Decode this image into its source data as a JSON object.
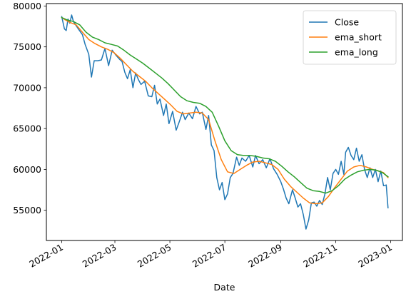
{
  "chart_data": {
    "type": "line",
    "title": "",
    "xlabel": "Date",
    "ylabel": "",
    "x_ticks": [
      "2022-01",
      "2022-03",
      "2022-05",
      "2022-07",
      "2022-09",
      "2022-11",
      "2023-01"
    ],
    "y_ticks": [
      55000,
      60000,
      65000,
      70000,
      75000,
      80000
    ],
    "ylim": [
      51300,
      80300
    ],
    "xlim": [
      "2021-12-15",
      "2023-01-14"
    ],
    "grid": false,
    "legend_position": "top-right",
    "series": [
      {
        "name": "Close",
        "color": "#1f77b4",
        "points": [
          [
            "2022-01-01",
            78700
          ],
          [
            "2022-01-04",
            77200
          ],
          [
            "2022-01-06",
            77000
          ],
          [
            "2022-01-08",
            78400
          ],
          [
            "2022-01-10",
            77900
          ],
          [
            "2022-01-12",
            78900
          ],
          [
            "2022-01-14",
            78100
          ],
          [
            "2022-01-17",
            77600
          ],
          [
            "2022-01-20",
            77100
          ],
          [
            "2022-01-24",
            76500
          ],
          [
            "2022-01-27",
            75300
          ],
          [
            "2022-01-31",
            74100
          ],
          [
            "2022-02-03",
            71300
          ],
          [
            "2022-02-06",
            73300
          ],
          [
            "2022-02-10",
            73300
          ],
          [
            "2022-02-14",
            73400
          ],
          [
            "2022-02-18",
            74800
          ],
          [
            "2022-02-22",
            72700
          ],
          [
            "2022-02-26",
            74600
          ],
          [
            "2022-03-02",
            74000
          ],
          [
            "2022-03-06",
            73500
          ],
          [
            "2022-03-09",
            73200
          ],
          [
            "2022-03-12",
            71900
          ],
          [
            "2022-03-15",
            71100
          ],
          [
            "2022-03-18",
            72200
          ],
          [
            "2022-03-21",
            70000
          ],
          [
            "2022-03-24",
            71800
          ],
          [
            "2022-03-27",
            71000
          ],
          [
            "2022-03-30",
            70400
          ],
          [
            "2022-04-03",
            70800
          ],
          [
            "2022-04-07",
            69000
          ],
          [
            "2022-04-11",
            68900
          ],
          [
            "2022-04-14",
            70300
          ],
          [
            "2022-04-17",
            68000
          ],
          [
            "2022-04-20",
            68600
          ],
          [
            "2022-04-24",
            66600
          ],
          [
            "2022-04-27",
            68000
          ],
          [
            "2022-04-30",
            65600
          ],
          [
            "2022-05-04",
            67100
          ],
          [
            "2022-05-08",
            64800
          ],
          [
            "2022-05-11",
            65700
          ],
          [
            "2022-05-15",
            67000
          ],
          [
            "2022-05-18",
            66100
          ],
          [
            "2022-05-22",
            66900
          ],
          [
            "2022-05-26",
            66200
          ],
          [
            "2022-05-30",
            67700
          ],
          [
            "2022-06-03",
            66800
          ],
          [
            "2022-06-06",
            67000
          ],
          [
            "2022-06-10",
            64900
          ],
          [
            "2022-06-13",
            66600
          ],
          [
            "2022-06-16",
            63000
          ],
          [
            "2022-06-19",
            62300
          ],
          [
            "2022-06-22",
            59000
          ],
          [
            "2022-06-25",
            57500
          ],
          [
            "2022-06-28",
            58400
          ],
          [
            "2022-07-01",
            56300
          ],
          [
            "2022-07-04",
            57000
          ],
          [
            "2022-07-07",
            59000
          ],
          [
            "2022-07-10",
            59500
          ],
          [
            "2022-07-14",
            61500
          ],
          [
            "2022-07-17",
            60500
          ],
          [
            "2022-07-20",
            61400
          ],
          [
            "2022-07-24",
            61000
          ],
          [
            "2022-07-28",
            61700
          ],
          [
            "2022-08-01",
            60300
          ],
          [
            "2022-08-04",
            61700
          ],
          [
            "2022-08-08",
            60700
          ],
          [
            "2022-08-12",
            61200
          ],
          [
            "2022-08-16",
            60200
          ],
          [
            "2022-08-20",
            61300
          ],
          [
            "2022-08-24",
            60100
          ],
          [
            "2022-08-28",
            59400
          ],
          [
            "2022-09-01",
            58500
          ],
          [
            "2022-09-04",
            57600
          ],
          [
            "2022-09-07",
            56500
          ],
          [
            "2022-09-10",
            55800
          ],
          [
            "2022-09-14",
            57500
          ],
          [
            "2022-09-17",
            56500
          ],
          [
            "2022-09-20",
            55400
          ],
          [
            "2022-09-23",
            55800
          ],
          [
            "2022-09-26",
            54500
          ],
          [
            "2022-09-29",
            52700
          ],
          [
            "2022-10-02",
            53800
          ],
          [
            "2022-10-05",
            55900
          ],
          [
            "2022-10-08",
            56000
          ],
          [
            "2022-10-11",
            55500
          ],
          [
            "2022-10-14",
            56200
          ],
          [
            "2022-10-17",
            55700
          ],
          [
            "2022-10-20",
            57000
          ],
          [
            "2022-10-23",
            59000
          ],
          [
            "2022-10-26",
            57500
          ],
          [
            "2022-10-29",
            59500
          ],
          [
            "2022-11-01",
            60000
          ],
          [
            "2022-11-04",
            59400
          ],
          [
            "2022-11-07",
            61000
          ],
          [
            "2022-11-10",
            59400
          ],
          [
            "2022-11-12",
            62100
          ],
          [
            "2022-11-15",
            62700
          ],
          [
            "2022-11-18",
            61700
          ],
          [
            "2022-11-21",
            61200
          ],
          [
            "2022-11-24",
            62600
          ],
          [
            "2022-11-27",
            61000
          ],
          [
            "2022-11-30",
            61800
          ],
          [
            "2022-12-03",
            60000
          ],
          [
            "2022-12-06",
            59000
          ],
          [
            "2022-12-09",
            60200
          ],
          [
            "2022-12-12",
            59000
          ],
          [
            "2022-12-15",
            60000
          ],
          [
            "2022-12-18",
            58500
          ],
          [
            "2022-12-21",
            59800
          ],
          [
            "2022-12-24",
            58000
          ],
          [
            "2022-12-27",
            58100
          ],
          [
            "2022-12-29",
            55300
          ]
        ]
      },
      {
        "name": "ema_short",
        "color": "#ff7f0e",
        "points": [
          [
            "2022-01-01",
            78600
          ],
          [
            "2022-01-05",
            78300
          ],
          [
            "2022-01-10",
            78000
          ],
          [
            "2022-01-17",
            77700
          ],
          [
            "2022-01-24",
            76800
          ],
          [
            "2022-01-31",
            75900
          ],
          [
            "2022-02-07",
            75400
          ],
          [
            "2022-02-14",
            75000
          ],
          [
            "2022-02-21",
            74700
          ],
          [
            "2022-02-28",
            74300
          ],
          [
            "2022-03-07",
            73600
          ],
          [
            "2022-03-14",
            72800
          ],
          [
            "2022-03-21",
            72000
          ],
          [
            "2022-03-28",
            71400
          ],
          [
            "2022-04-04",
            70800
          ],
          [
            "2022-04-11",
            70000
          ],
          [
            "2022-04-18",
            69300
          ],
          [
            "2022-04-25",
            68600
          ],
          [
            "2022-05-02",
            67900
          ],
          [
            "2022-05-09",
            67100
          ],
          [
            "2022-05-16",
            66800
          ],
          [
            "2022-05-23",
            66900
          ],
          [
            "2022-05-30",
            67000
          ],
          [
            "2022-06-06",
            66900
          ],
          [
            "2022-06-13",
            66100
          ],
          [
            "2022-06-20",
            63500
          ],
          [
            "2022-06-27",
            61200
          ],
          [
            "2022-07-04",
            59700
          ],
          [
            "2022-07-11",
            59500
          ],
          [
            "2022-07-18",
            60000
          ],
          [
            "2022-07-25",
            60500
          ],
          [
            "2022-08-01",
            60900
          ],
          [
            "2022-08-08",
            61000
          ],
          [
            "2022-08-15",
            60800
          ],
          [
            "2022-08-22",
            60600
          ],
          [
            "2022-08-29",
            60000
          ],
          [
            "2022-09-05",
            58800
          ],
          [
            "2022-09-12",
            57900
          ],
          [
            "2022-09-19",
            57200
          ],
          [
            "2022-09-26",
            56500
          ],
          [
            "2022-10-03",
            55900
          ],
          [
            "2022-10-10",
            55800
          ],
          [
            "2022-10-17",
            55900
          ],
          [
            "2022-10-24",
            56700
          ],
          [
            "2022-10-31",
            57800
          ],
          [
            "2022-11-07",
            58800
          ],
          [
            "2022-11-14",
            59800
          ],
          [
            "2022-11-21",
            60300
          ],
          [
            "2022-11-28",
            60500
          ],
          [
            "2022-12-05",
            60300
          ],
          [
            "2022-12-12",
            60000
          ],
          [
            "2022-12-19",
            59800
          ],
          [
            "2022-12-24",
            59600
          ],
          [
            "2022-12-29",
            59000
          ]
        ]
      },
      {
        "name": "ema_long",
        "color": "#2ca02c",
        "points": [
          [
            "2022-01-01",
            78600
          ],
          [
            "2022-01-07",
            78300
          ],
          [
            "2022-01-14",
            78100
          ],
          [
            "2022-01-21",
            77700
          ],
          [
            "2022-01-28",
            76800
          ],
          [
            "2022-02-04",
            76200
          ],
          [
            "2022-02-11",
            75900
          ],
          [
            "2022-02-18",
            75500
          ],
          [
            "2022-02-25",
            75300
          ],
          [
            "2022-03-04",
            75100
          ],
          [
            "2022-03-11",
            74600
          ],
          [
            "2022-03-18",
            74000
          ],
          [
            "2022-03-25",
            73500
          ],
          [
            "2022-04-01",
            73000
          ],
          [
            "2022-04-08",
            72400
          ],
          [
            "2022-04-15",
            71800
          ],
          [
            "2022-04-22",
            71200
          ],
          [
            "2022-04-29",
            70500
          ],
          [
            "2022-05-06",
            69700
          ],
          [
            "2022-05-13",
            68900
          ],
          [
            "2022-05-20",
            68400
          ],
          [
            "2022-05-27",
            68200
          ],
          [
            "2022-06-03",
            68100
          ],
          [
            "2022-06-10",
            67700
          ],
          [
            "2022-06-17",
            67000
          ],
          [
            "2022-06-24",
            65300
          ],
          [
            "2022-07-01",
            63500
          ],
          [
            "2022-07-08",
            62300
          ],
          [
            "2022-07-15",
            61800
          ],
          [
            "2022-07-22",
            61700
          ],
          [
            "2022-07-29",
            61700
          ],
          [
            "2022-08-05",
            61600
          ],
          [
            "2022-08-12",
            61400
          ],
          [
            "2022-08-19",
            61300
          ],
          [
            "2022-08-26",
            61000
          ],
          [
            "2022-09-02",
            60400
          ],
          [
            "2022-09-09",
            59700
          ],
          [
            "2022-09-16",
            59100
          ],
          [
            "2022-09-23",
            58400
          ],
          [
            "2022-09-30",
            57700
          ],
          [
            "2022-10-07",
            57400
          ],
          [
            "2022-10-14",
            57300
          ],
          [
            "2022-10-21",
            57100
          ],
          [
            "2022-10-28",
            57400
          ],
          [
            "2022-11-04",
            58000
          ],
          [
            "2022-11-11",
            58800
          ],
          [
            "2022-11-18",
            59300
          ],
          [
            "2022-11-25",
            59700
          ],
          [
            "2022-12-02",
            59900
          ],
          [
            "2022-12-09",
            60000
          ],
          [
            "2022-12-16",
            59900
          ],
          [
            "2022-12-23",
            59600
          ],
          [
            "2022-12-29",
            59100
          ]
        ]
      }
    ]
  }
}
